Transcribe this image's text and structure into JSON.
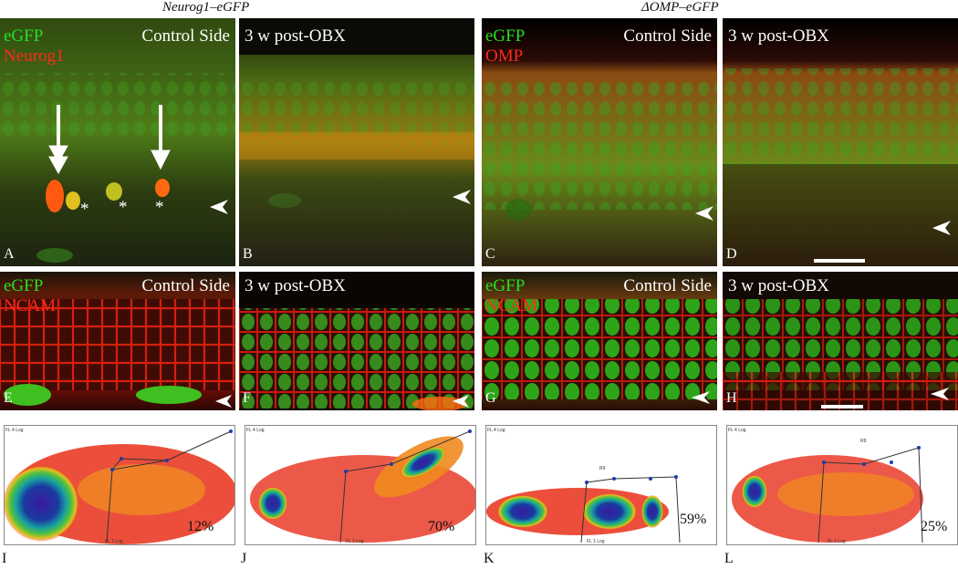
{
  "headers": {
    "left": "Neurog1–eGFP",
    "right": "ΔOMP–eGFP"
  },
  "labels": {
    "egfp": "eGFP",
    "neurog1": "Neurog1",
    "omp": "OMP",
    "ncam": "NCAM",
    "control": "Control Side",
    "post": "3 w post-OBX",
    "asterisk": "*"
  },
  "panel_letters": [
    "A",
    "B",
    "C",
    "D",
    "E",
    "F",
    "G",
    "H",
    "I",
    "J",
    "K",
    "L"
  ],
  "flow": {
    "xlabel": "FL 1 Log",
    "ylabel": "FL 4 Log",
    "gate_label": "R9",
    "percentages": {
      "I": "12%",
      "J": "70%",
      "K": "59%",
      "L": "25%"
    }
  },
  "colors": {
    "egfp": "#25e025",
    "red_stain": "#ff2a1a"
  }
}
